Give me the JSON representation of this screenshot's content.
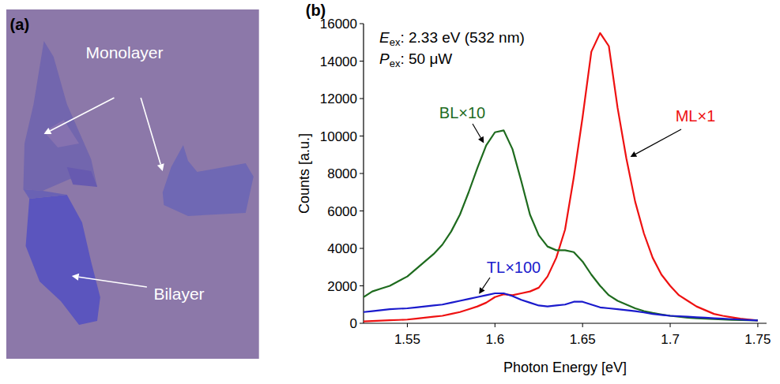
{
  "image": {
    "panel_label": "(a)",
    "labels": [
      {
        "text": "Monolayer"
      },
      {
        "text": "Bilayer"
      }
    ]
  },
  "chart_data": {
    "type": "line",
    "panel_label": "(b)",
    "x_label": "Photon Energy [eV]",
    "y_label": "Counts [a.u.]",
    "annotations": [
      {
        "symbol": "E",
        "subscript": "ex",
        "text": ": 2.33 eV (532 nm)"
      },
      {
        "symbol": "P",
        "subscript": "ex",
        "text": ": 50 μW"
      }
    ],
    "xlim": [
      1.525,
      1.755
    ],
    "xticks": [
      1.55,
      1.6,
      1.65,
      1.7,
      1.75
    ],
    "ylim": [
      0,
      16000
    ],
    "yticks": [
      0,
      2000,
      4000,
      6000,
      8000,
      10000,
      12000,
      14000,
      16000
    ],
    "grid": false,
    "x": [
      1.525,
      1.53,
      1.535,
      1.54,
      1.545,
      1.55,
      1.555,
      1.56,
      1.565,
      1.57,
      1.575,
      1.58,
      1.585,
      1.59,
      1.595,
      1.6,
      1.605,
      1.61,
      1.615,
      1.62,
      1.625,
      1.63,
      1.635,
      1.64,
      1.645,
      1.65,
      1.655,
      1.66,
      1.665,
      1.67,
      1.675,
      1.68,
      1.685,
      1.69,
      1.695,
      1.7,
      1.705,
      1.71,
      1.715,
      1.72,
      1.725,
      1.73,
      1.735,
      1.74,
      1.745,
      1.75
    ],
    "series": [
      {
        "name": "ML×1",
        "color": "#ee1111",
        "values": [
          100,
          120,
          140,
          160,
          180,
          200,
          250,
          300,
          350,
          400,
          500,
          600,
          750,
          900,
          1100,
          1400,
          1550,
          1500,
          1600,
          1700,
          1900,
          2500,
          3500,
          5000,
          7800,
          11000,
          14500,
          15500,
          14800,
          11500,
          8800,
          6500,
          4800,
          3500,
          2600,
          2000,
          1500,
          1200,
          900,
          700,
          500,
          400,
          320,
          250,
          200,
          150
        ]
      },
      {
        "name": "BL×10",
        "color": "#1e6b1e",
        "values": [
          1400,
          1700,
          1850,
          2000,
          2250,
          2500,
          2900,
          3300,
          3700,
          4200,
          4900,
          5800,
          7000,
          8300,
          9500,
          10200,
          10300,
          9300,
          7600,
          5800,
          4700,
          4100,
          3900,
          3900,
          3800,
          3300,
          2600,
          2000,
          1500,
          1200,
          1000,
          800,
          650,
          550,
          470,
          400,
          350,
          300,
          270,
          250,
          230,
          200,
          180,
          170,
          160,
          150
        ]
      },
      {
        "name": "TL×100",
        "color": "#1a1acc",
        "values": [
          600,
          650,
          700,
          750,
          780,
          800,
          850,
          900,
          950,
          1000,
          1100,
          1200,
          1300,
          1400,
          1500,
          1600,
          1600,
          1450,
          1250,
          1100,
          950,
          900,
          950,
          1000,
          1150,
          1150,
          1000,
          850,
          800,
          750,
          700,
          650,
          580,
          500,
          450,
          400,
          380,
          350,
          320,
          300,
          270,
          250,
          220,
          200,
          170,
          150
        ]
      }
    ]
  }
}
